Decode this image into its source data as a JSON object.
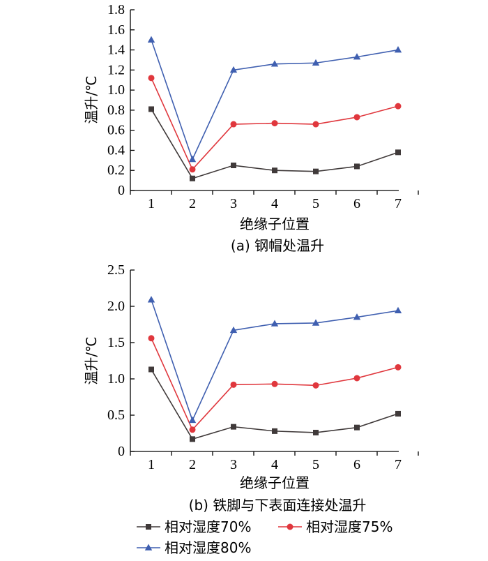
{
  "series_colors": [
    "#403a3a",
    "#e0373d",
    "#3f5fb0"
  ],
  "series_markers": [
    "square",
    "circle",
    "triangle"
  ],
  "legend": {
    "position": "bottom",
    "entries": [
      "相对湿度70%",
      "相对湿度75%",
      "相对湿度80%"
    ]
  },
  "chart_data": [
    {
      "type": "line",
      "caption": "(a)  钢帽处温升",
      "xlabel": "绝缘子位置",
      "ylabel": "温升/℃",
      "x": [
        1,
        2,
        3,
        4,
        5,
        6,
        7
      ],
      "x_tick_labels": [
        "1",
        "2",
        "3",
        "4",
        "5",
        "6",
        "7"
      ],
      "ylim": [
        0,
        1.8
      ],
      "y_ticks": [
        0,
        0.2,
        0.4,
        0.6,
        0.8,
        1.0,
        1.2,
        1.4,
        1.6,
        1.8
      ],
      "y_tick_labels": [
        "0",
        "0.2",
        "0.4",
        "0.6",
        "0.8",
        "1.0",
        "1.2",
        "1.4",
        "1.6",
        "1.8"
      ],
      "grid": false,
      "series": [
        {
          "name": "相对湿度70%",
          "values": [
            0.81,
            0.12,
            0.25,
            0.2,
            0.19,
            0.24,
            0.38
          ]
        },
        {
          "name": "相对湿度75%",
          "values": [
            1.12,
            0.21,
            0.66,
            0.67,
            0.66,
            0.73,
            0.84
          ]
        },
        {
          "name": "相对湿度80%",
          "values": [
            1.5,
            0.31,
            1.2,
            1.26,
            1.27,
            1.33,
            1.4
          ]
        }
      ]
    },
    {
      "type": "line",
      "caption": "(b)  铁脚与下表面连接处温升",
      "xlabel": "绝缘子位置",
      "ylabel": "温升/℃",
      "x": [
        1,
        2,
        3,
        4,
        5,
        6,
        7
      ],
      "x_tick_labels": [
        "1",
        "2",
        "3",
        "4",
        "5",
        "6",
        "7"
      ],
      "ylim": [
        0,
        2.5
      ],
      "y_ticks": [
        0,
        0.5,
        1.0,
        1.5,
        2.0,
        2.5
      ],
      "y_tick_labels": [
        "0",
        "0.5",
        "1.0",
        "1.5",
        "2.0",
        "2.5"
      ],
      "grid": false,
      "series": [
        {
          "name": "相对湿度70%",
          "values": [
            1.13,
            0.17,
            0.34,
            0.28,
            0.26,
            0.33,
            0.52
          ]
        },
        {
          "name": "相对湿度75%",
          "values": [
            1.56,
            0.3,
            0.92,
            0.93,
            0.91,
            1.01,
            1.16
          ]
        },
        {
          "name": "相对湿度80%",
          "values": [
            2.09,
            0.43,
            1.67,
            1.76,
            1.77,
            1.85,
            1.94
          ]
        }
      ]
    }
  ]
}
